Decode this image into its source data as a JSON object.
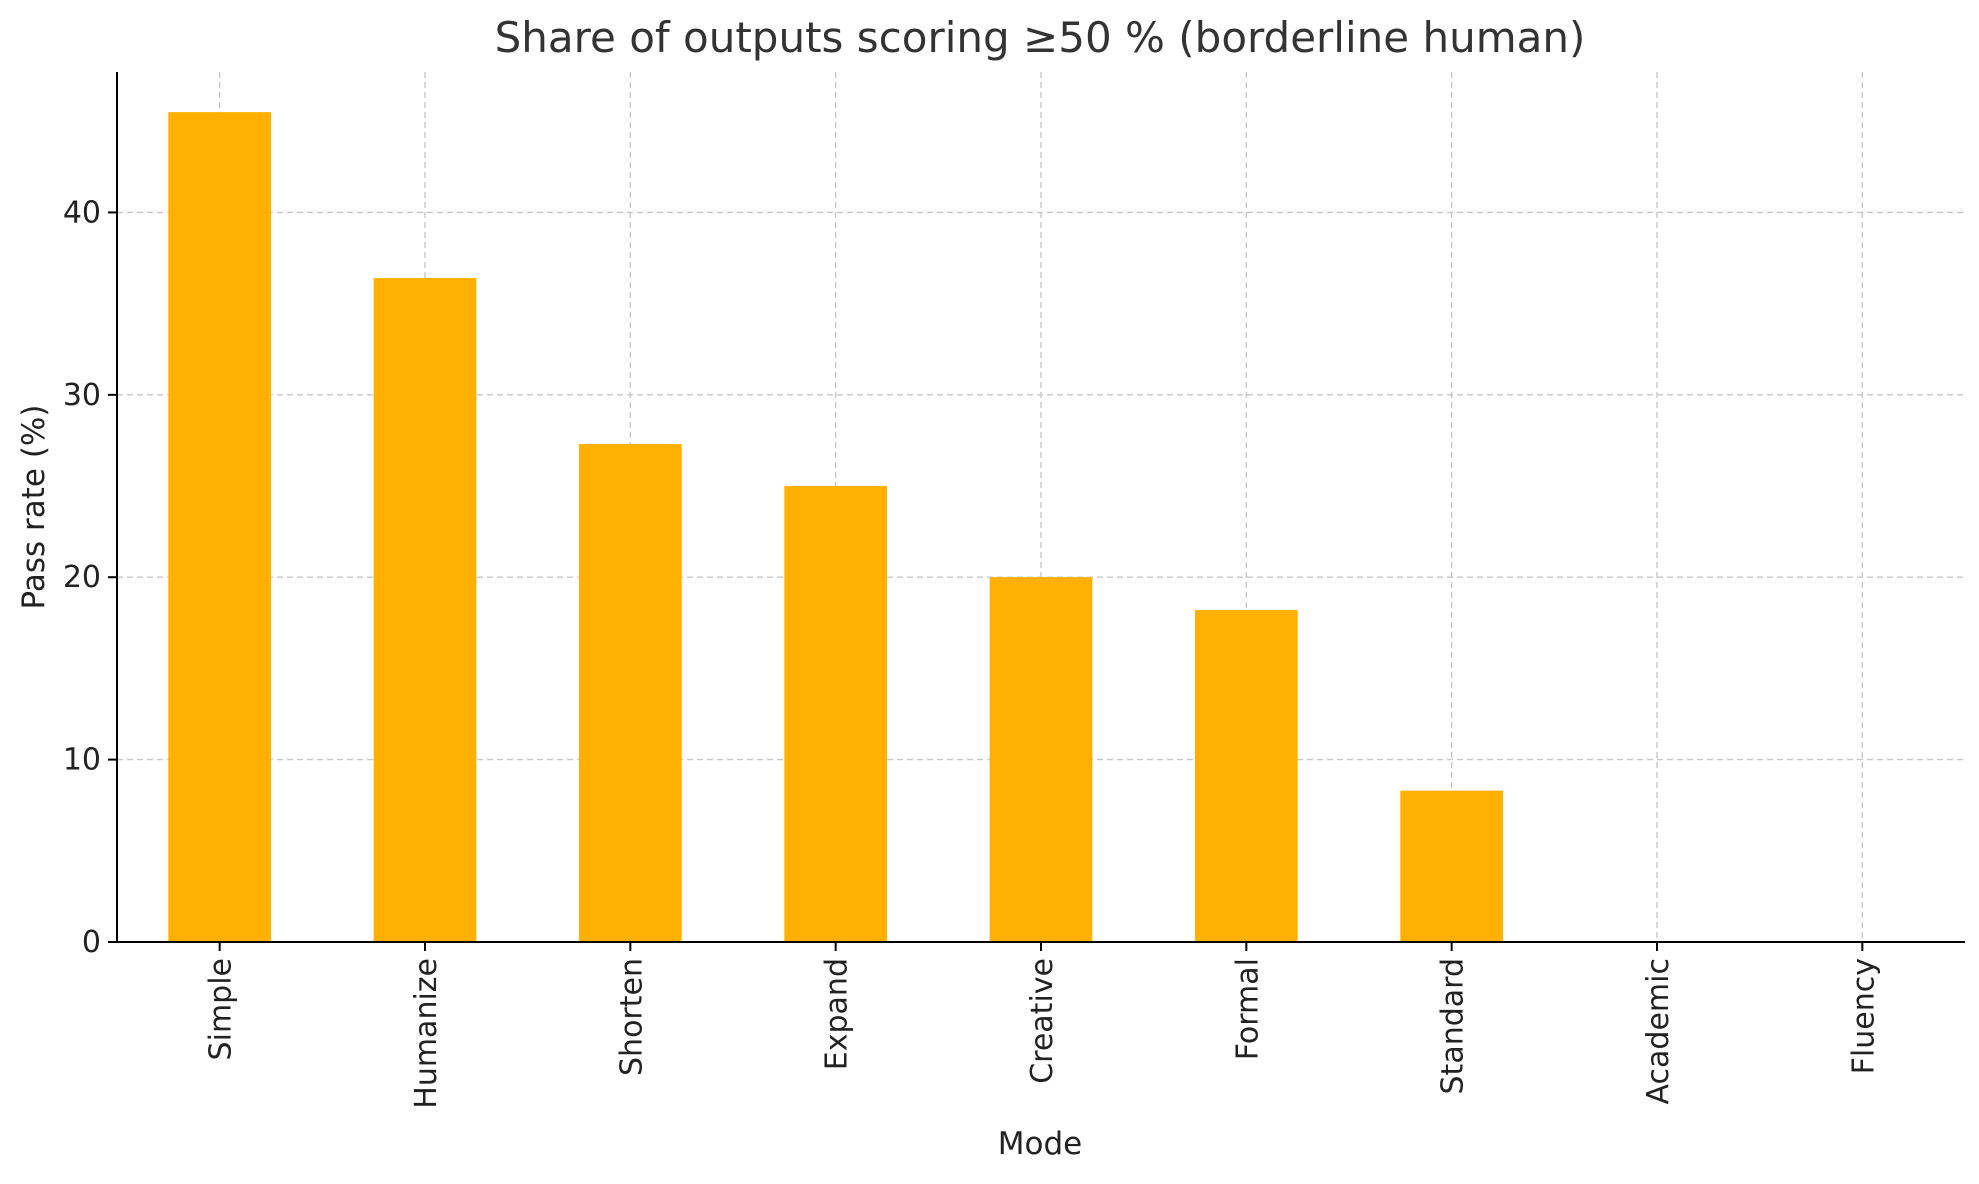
{
  "chart_data": {
    "type": "bar",
    "title": "Share of outputs scoring ≥50 % (borderline human)",
    "xlabel": "Mode",
    "ylabel": "Pass rate (%)",
    "categories": [
      "Simple",
      "Humanize",
      "Shorten",
      "Expand",
      "Creative",
      "Formal",
      "Standard",
      "Academic",
      "Fluency"
    ],
    "values": [
      45.5,
      36.4,
      27.3,
      25.0,
      20.0,
      18.2,
      8.3,
      0,
      0
    ],
    "ylim": [
      0,
      47.7
    ],
    "yticks": [
      0,
      10,
      20,
      30,
      40
    ],
    "grid": true,
    "bar_color": "#FFB000",
    "grid_color": "#c8c8c8",
    "axis_color": "#000000",
    "text_color": "#222222"
  }
}
